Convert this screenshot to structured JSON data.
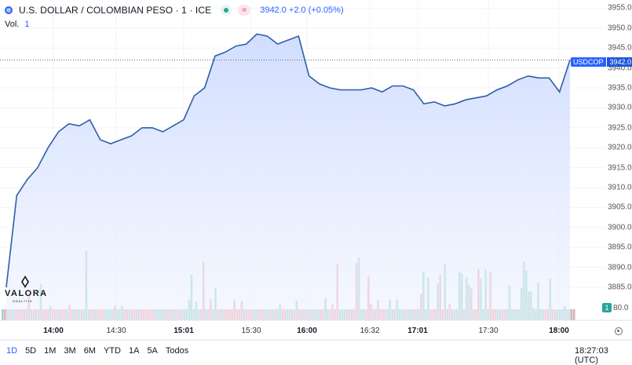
{
  "header": {
    "title": "U.S. DOLLAR / COLOMBIAN PESO · 1 · ICE",
    "quote": "3942.0  +2.0 (+0.05%)",
    "volume_label": "Vol.",
    "volume_value": "1"
  },
  "price_tag": {
    "symbol": "USDCOP",
    "value": "3942.0"
  },
  "volume_tag": {
    "badge": "1",
    "value": "80.0"
  },
  "y_axis": {
    "ticks": [
      "3955.0",
      "3950.0",
      "3945.0",
      "3940.0",
      "3935.0",
      "3930.0",
      "3925.0",
      "3920.0",
      "3915.0",
      "3910.0",
      "3905.0",
      "3900.0",
      "3895.0",
      "3890.0",
      "3885.0"
    ]
  },
  "x_axis": {
    "labels": [
      {
        "text": "14:00",
        "bold": true
      },
      {
        "text": "14:30",
        "bold": false
      },
      {
        "text": "15:01",
        "bold": true
      },
      {
        "text": "15:30",
        "bold": false
      },
      {
        "text": "16:00",
        "bold": true
      },
      {
        "text": "16:32",
        "bold": false
      },
      {
        "text": "17:01",
        "bold": true
      },
      {
        "text": "17:30",
        "bold": false
      },
      {
        "text": "18:00",
        "bold": true
      }
    ]
  },
  "ranges": [
    "1D",
    "5D",
    "1M",
    "3M",
    "6M",
    "YTD",
    "1A",
    "5A",
    "Todos"
  ],
  "active_range": "1D",
  "clock": "18:27:03 (UTC)",
  "watermark": {
    "name": "VALORA",
    "sub": "ANALITIK"
  },
  "colors": {
    "line": "#2f5ea8",
    "area_top": "#cfdcff",
    "up": "#26a69a",
    "down": "#ef5350",
    "accent": "#2962ff"
  },
  "chart_data": {
    "type": "area",
    "title": "U.S. DOLLAR / COLOMBIAN PESO · 1 · ICE",
    "x": [
      "13:37",
      "13:40",
      "13:45",
      "13:50",
      "13:55",
      "14:00",
      "14:05",
      "14:10",
      "14:15",
      "14:20",
      "14:25",
      "14:30",
      "14:35",
      "14:40",
      "14:45",
      "14:50",
      "14:55",
      "15:01",
      "15:05",
      "15:10",
      "15:15",
      "15:20",
      "15:25",
      "15:30",
      "15:35",
      "15:40",
      "15:45",
      "15:50",
      "15:55",
      "16:00",
      "16:05",
      "16:10",
      "16:15",
      "16:20",
      "16:25",
      "16:32",
      "16:38",
      "16:44",
      "16:50",
      "16:56",
      "17:01",
      "17:06",
      "17:11",
      "17:16",
      "17:21",
      "17:26",
      "17:30",
      "17:35",
      "17:40",
      "17:45",
      "17:50",
      "17:55",
      "18:00",
      "18:05",
      "18:10"
    ],
    "values": [
      3885.0,
      3908.0,
      3912.0,
      3915.0,
      3920.0,
      3924.0,
      3926.0,
      3925.5,
      3927.0,
      3922.0,
      3921.0,
      3922.0,
      3923.0,
      3925.0,
      3925.0,
      3924.0,
      3925.5,
      3927.0,
      3933.0,
      3935.0,
      3943.0,
      3944.0,
      3945.5,
      3946.0,
      3948.5,
      3948.0,
      3946.0,
      3947.0,
      3948.0,
      3938.0,
      3936.0,
      3935.0,
      3934.5,
      3934.5,
      3934.5,
      3935.0,
      3934.0,
      3935.5,
      3935.5,
      3934.5,
      3931.0,
      3931.5,
      3930.5,
      3931.0,
      3932.0,
      3932.5,
      3933.0,
      3934.5,
      3935.5,
      3937.0,
      3938.0,
      3937.5,
      3937.5,
      3934.0,
      3942.0
    ],
    "volume": [
      1,
      1,
      1,
      1,
      1,
      1,
      1,
      1,
      1,
      1,
      1,
      1,
      1,
      1,
      1,
      1,
      1,
      1,
      1,
      1,
      1,
      1,
      1,
      1,
      1,
      1,
      1,
      1,
      1,
      1,
      1,
      1,
      1,
      1,
      1,
      1,
      1,
      1,
      1,
      1,
      1,
      1,
      1,
      1,
      1,
      1,
      1,
      1,
      1,
      1,
      1,
      1,
      1,
      1,
      1
    ],
    "ylim": [
      3882,
      3957
    ],
    "y_ticks": [
      3955,
      3950,
      3945,
      3940,
      3935,
      3930,
      3925,
      3920,
      3915,
      3910,
      3905,
      3900,
      3895,
      3890,
      3885
    ],
    "last_price": 3942.0,
    "grid": true
  }
}
